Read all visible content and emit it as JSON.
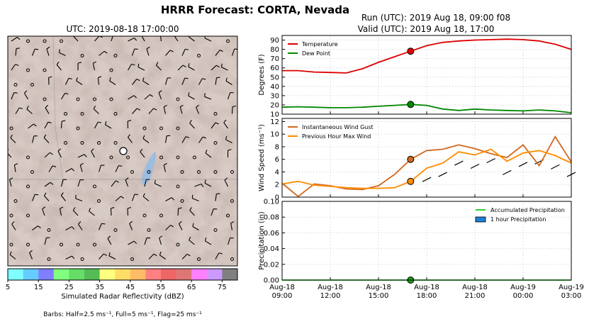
{
  "header": {
    "title": "HRRR Forecast: CORTA, Nevada",
    "map_title": "UTC: 2019-08-18 17:00:00",
    "run_line": "Run (UTC): 2019 Aug 18, 09:00 f08",
    "valid_line": "Valid (UTC): 2019 Aug 18, 17:00"
  },
  "map": {
    "colorbar_label": "Simulated Radar Reflectivity (dBZ)",
    "colorbar_ticks": [
      "5",
      "15",
      "25",
      "35",
      "45",
      "55",
      "65",
      "75"
    ],
    "colorbar_colors": [
      "#7fffff",
      "#66ccff",
      "#8080ff",
      "#80ff80",
      "#66dd66",
      "#55bb55",
      "#ffff80",
      "#ffdd66",
      "#ffbb66",
      "#ff8080",
      "#ee6666",
      "#dd7777",
      "#ff80ff",
      "#cc99ff",
      "#808080"
    ],
    "barbs_note": "Barbs: Half=2.5 ms⁻¹, Full=5 ms⁻¹, Flag=25 ms⁻¹",
    "terrain_color": "#d8cac4",
    "lake_color": "#9dbde0",
    "site_marker": "open-circle"
  },
  "chart_data": [
    {
      "type": "line",
      "panel": "temperature",
      "ylabel": "Degrees (F)",
      "ylim": [
        10,
        95
      ],
      "yticks": [
        "10",
        "20",
        "30",
        "40",
        "50",
        "60",
        "70",
        "80",
        "90"
      ],
      "grid": true,
      "legend_position": "top-left",
      "x_hours": [
        0,
        1,
        2,
        3,
        4,
        5,
        6,
        7,
        8,
        9,
        10,
        11,
        12,
        13,
        14,
        15,
        16,
        17,
        18
      ],
      "series": [
        {
          "name": "Temperature",
          "color": "#dd0000",
          "values": [
            57,
            57,
            55.5,
            55,
            54.5,
            59,
            66,
            72,
            78,
            84,
            87.5,
            89,
            90,
            90.5,
            91,
            90.5,
            89,
            85.5,
            80
          ]
        },
        {
          "name": "Dew Point",
          "color": "#008800",
          "values": [
            17.5,
            18,
            17.5,
            17,
            17,
            17.5,
            18.5,
            19.5,
            20.5,
            19.5,
            15.5,
            14,
            15.5,
            14.5,
            14,
            13.5,
            14.5,
            13.5,
            11.5
          ]
        }
      ],
      "marker": {
        "hour": 8,
        "values": [
          78,
          20.5
        ]
      }
    },
    {
      "type": "line",
      "panel": "wind",
      "ylabel": "Wind Speed (ms⁻¹)",
      "ylim": [
        0,
        12.5
      ],
      "yticks": [
        "0",
        "2",
        "4",
        "6",
        "8",
        "10",
        "12"
      ],
      "grid": true,
      "legend_position": "top-left",
      "x_hours": [
        0,
        1,
        2,
        3,
        4,
        5,
        6,
        7,
        8,
        9,
        10,
        11,
        12,
        13,
        14,
        15,
        16,
        17,
        18
      ],
      "series": [
        {
          "name": "Instantaneous Wind Gust",
          "color": "#d2691e",
          "values": [
            2.2,
            0.1,
            2.1,
            1.8,
            1.3,
            1.2,
            1.8,
            3.6,
            6.0,
            7.4,
            7.6,
            8.3,
            7.7,
            6.9,
            6.3,
            8.3,
            5.0,
            9.6,
            5.6
          ]
        },
        {
          "name": "Previous Hour Max Wind",
          "color": "#ff8c00",
          "values": [
            2.1,
            2.5,
            1.9,
            1.7,
            1.5,
            1.4,
            1.4,
            1.5,
            2.5,
            4.6,
            5.4,
            7.2,
            6.7,
            7.6,
            5.7,
            7.0,
            7.4,
            6.6,
            5.4
          ]
        }
      ],
      "marker": {
        "hour": 8,
        "values": [
          6.0,
          2.5
        ]
      },
      "barb_speeds": [
        2.1,
        2.5,
        1.9,
        1.7,
        1.5,
        1.4,
        1.4,
        1.5,
        2.5,
        4.6,
        5.4,
        7.2,
        6.7,
        7.6,
        5.7,
        7.0,
        7.4,
        6.6,
        5.4
      ]
    },
    {
      "type": "bar",
      "panel": "precipitation",
      "ylabel": "Precipitation (in)",
      "ylim": [
        0,
        0.1
      ],
      "yticks": [
        "0.00",
        "0.02",
        "0.04",
        "0.06",
        "0.08",
        "0.10"
      ],
      "grid": true,
      "legend_position": "top-right",
      "x_hours": [
        0,
        1,
        2,
        3,
        4,
        5,
        6,
        7,
        8,
        9,
        10,
        11,
        12,
        13,
        14,
        15,
        16,
        17,
        18
      ],
      "series": [
        {
          "name": "Accumulated Precipitation",
          "color": "#33cc33",
          "values": [
            0,
            0,
            0,
            0,
            0,
            0,
            0,
            0,
            0,
            0,
            0,
            0,
            0,
            0,
            0,
            0,
            0,
            0,
            0
          ]
        },
        {
          "name": "1 hour Precipitation",
          "color": "#1e7fd6",
          "values": [
            0,
            0,
            0,
            0,
            0,
            0,
            0,
            0,
            0,
            0,
            0,
            0,
            0,
            0,
            0,
            0,
            0,
            0,
            0
          ]
        }
      ],
      "marker": {
        "hour": 8,
        "values": [
          0
        ]
      },
      "xtick_labels": [
        {
          "hour": 0,
          "line1": "Aug-18",
          "line2": "09:00"
        },
        {
          "hour": 3,
          "line1": "Aug-18",
          "line2": "12:00"
        },
        {
          "hour": 6,
          "line1": "Aug-18",
          "line2": "15:00"
        },
        {
          "hour": 9,
          "line1": "Aug-18",
          "line2": "18:00"
        },
        {
          "hour": 12,
          "line1": "Aug-18",
          "line2": "21:00"
        },
        {
          "hour": 15,
          "line1": "Aug-19",
          "line2": "00:00"
        },
        {
          "hour": 18,
          "line1": "Aug-19",
          "line2": "03:00"
        }
      ]
    }
  ]
}
